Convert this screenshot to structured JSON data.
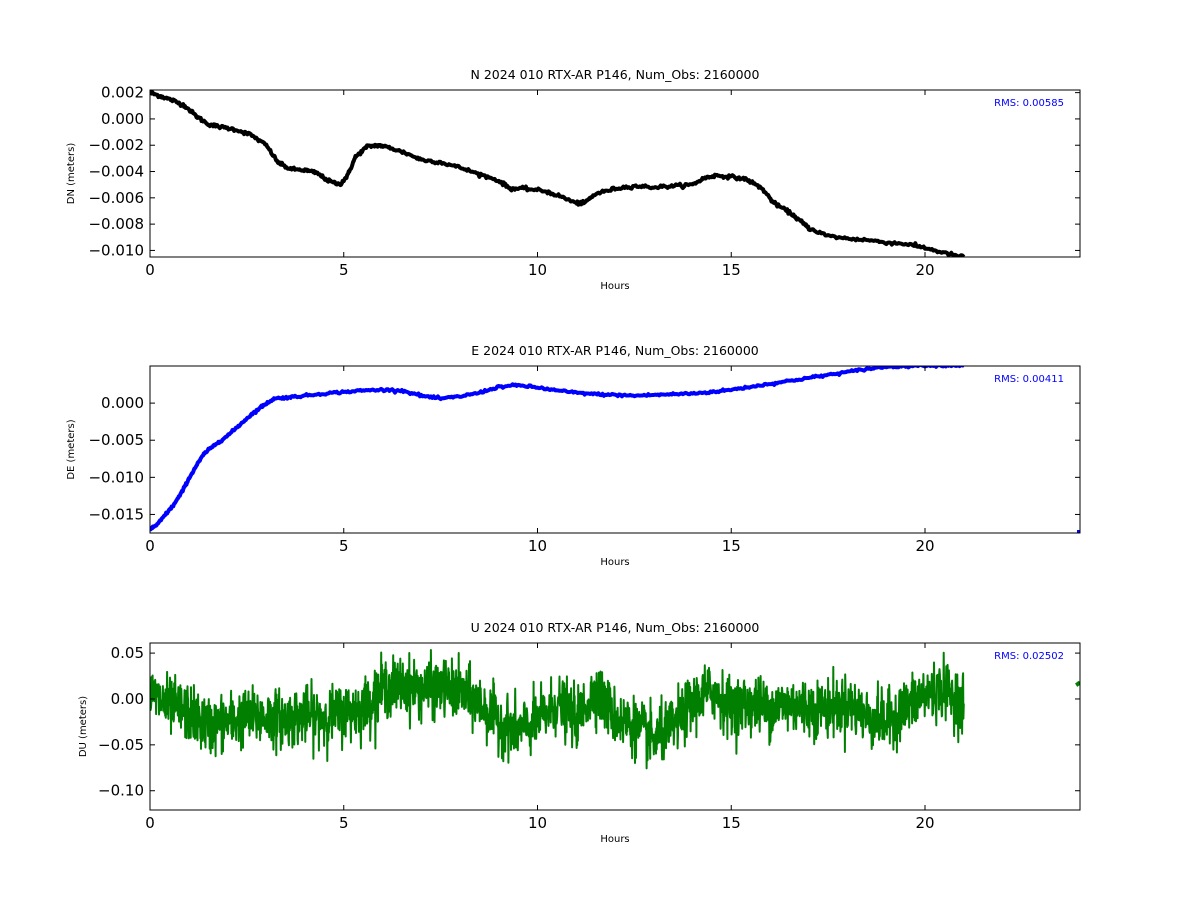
{
  "chart_data": [
    {
      "type": "line",
      "title": "N 2024 010 RTX-AR  P146, Num_Obs: 2160000",
      "xlabel": "Hours",
      "ylabel": "DN (meters)",
      "xlim": [
        0,
        24
      ],
      "ylim": [
        -0.0105,
        0.0022
      ],
      "xticks": [
        0,
        5,
        10,
        15,
        20
      ],
      "xtick_labels": [
        "0",
        "5",
        "10",
        "15",
        "20"
      ],
      "yticks": [
        0.002,
        0.0,
        -0.002,
        -0.004,
        -0.006,
        -0.008,
        -0.01
      ],
      "ytick_labels": [
        "0.002",
        "0.000",
        "−0.002",
        "−0.004",
        "−0.006",
        "−0.008",
        "−0.010"
      ],
      "rms_label": "RMS:  0.00585",
      "rms_color": "#0000ff",
      "grid": false,
      "series": [
        {
          "color": "#000000",
          "noise": 6e-05,
          "x": [
            0,
            0.3,
            0.6,
            0.9,
            1.2,
            1.5,
            1.8,
            2.2,
            2.6,
            3.0,
            3.3,
            3.6,
            4.0,
            4.3,
            4.6,
            4.9,
            5.1,
            5.3,
            5.6,
            5.9,
            6.2,
            6.6,
            7.0,
            7.5,
            8.0,
            8.5,
            9.0,
            9.3,
            9.7,
            10.2,
            10.6,
            11.0,
            11.2,
            11.5,
            12.0,
            12.5,
            13.0,
            13.5,
            14.0,
            14.3,
            14.6,
            15.0,
            15.4,
            15.8,
            16.1,
            16.5,
            16.8,
            17.0,
            17.5,
            18.0,
            18.5,
            19.0,
            19.5,
            20.0,
            20.5,
            21.0
          ],
          "y": [
            0.002,
            0.0017,
            0.0014,
            0.001,
            0.0002,
            -0.0004,
            -0.0006,
            -0.0008,
            -0.0012,
            -0.002,
            -0.0033,
            -0.0038,
            -0.0039,
            -0.0041,
            -0.0047,
            -0.005,
            -0.0043,
            -0.0029,
            -0.0021,
            -0.002,
            -0.0022,
            -0.0026,
            -0.0031,
            -0.0033,
            -0.0037,
            -0.0042,
            -0.0047,
            -0.0053,
            -0.0053,
            -0.0055,
            -0.0059,
            -0.0064,
            -0.0064,
            -0.0057,
            -0.0053,
            -0.0051,
            -0.0052,
            -0.0051,
            -0.005,
            -0.0045,
            -0.0043,
            -0.0044,
            -0.0046,
            -0.0053,
            -0.0064,
            -0.0071,
            -0.0078,
            -0.0083,
            -0.0089,
            -0.0091,
            -0.0092,
            -0.0094,
            -0.0095,
            -0.0098,
            -0.0102,
            -0.0105
          ]
        }
      ]
    },
    {
      "type": "line",
      "title": "E 2024 010 RTX-AR  P146, Num_Obs: 2160000",
      "xlabel": "Hours",
      "ylabel": "DE (meters)",
      "xlim": [
        0,
        24
      ],
      "ylim": [
        -0.0175,
        0.005
      ],
      "xticks": [
        0,
        5,
        10,
        15,
        20
      ],
      "xtick_labels": [
        "0",
        "5",
        "10",
        "15",
        "20"
      ],
      "yticks": [
        0.0,
        -0.005,
        -0.01,
        -0.015
      ],
      "ytick_labels": [
        "0.000",
        "−0.005",
        "−0.010",
        "−0.015"
      ],
      "rms_label": "RMS:  0.00411",
      "rms_color": "#0000ff",
      "grid": false,
      "series": [
        {
          "color": "#0000ff",
          "noise": 8e-05,
          "x": [
            0,
            0.2,
            0.4,
            0.6,
            0.8,
            1.0,
            1.2,
            1.4,
            1.7,
            2.0,
            2.3,
            2.6,
            2.9,
            3.2,
            3.6,
            4.0,
            4.5,
            5.0,
            5.5,
            6.0,
            6.5,
            7.0,
            7.5,
            8.0,
            8.5,
            9.0,
            9.5,
            10.0,
            10.5,
            11.0,
            11.5,
            12.0,
            12.5,
            13.0,
            13.5,
            14.0,
            14.5,
            15.0,
            15.5,
            16.0,
            16.5,
            17.0,
            17.5,
            18.0,
            18.5,
            19.0,
            19.5,
            20.0,
            20.5,
            21.0
          ],
          "y": [
            -0.017,
            -0.0163,
            -0.015,
            -0.0138,
            -0.0122,
            -0.0102,
            -0.0084,
            -0.0068,
            -0.0055,
            -0.0044,
            -0.003,
            -0.0016,
            -0.0004,
            0.0006,
            0.0008,
            0.001,
            0.0013,
            0.0015,
            0.0017,
            0.0018,
            0.0017,
            0.001,
            0.0006,
            0.0009,
            0.0014,
            0.0022,
            0.0024,
            0.0021,
            0.0017,
            0.0014,
            0.0012,
            0.0011,
            0.001,
            0.0011,
            0.0012,
            0.0013,
            0.0015,
            0.0018,
            0.0022,
            0.0026,
            0.003,
            0.0034,
            0.0038,
            0.0042,
            0.0046,
            0.0049,
            0.005,
            0.0051,
            0.0051,
            0.0051
          ]
        },
        {
          "color": "#0000ff",
          "noise": 0,
          "x": [
            24.0
          ],
          "y": [
            -0.0175
          ]
        }
      ]
    },
    {
      "type": "line",
      "title": "U 2024 010 RTX-AR  P146, Num_Obs: 2160000",
      "xlabel": "Hours",
      "ylabel": "DU (meters)",
      "xlim": [
        0,
        24
      ],
      "ylim": [
        -0.121,
        0.061
      ],
      "xticks": [
        0,
        5,
        10,
        15,
        20
      ],
      "xtick_labels": [
        "0",
        "5",
        "10",
        "15",
        "20"
      ],
      "yticks": [
        0.05,
        0.0,
        -0.05,
        -0.1
      ],
      "ytick_labels": [
        "0.05",
        "0.00",
        "−0.05",
        "−0.10"
      ],
      "rms_label": "RMS:  0.02502",
      "rms_color": "#0000ff",
      "grid": false,
      "series": [
        {
          "color": "#007f00",
          "noise": 0.028,
          "x": [
            0,
            0.5,
            1.0,
            1.5,
            2.0,
            2.5,
            3.0,
            3.5,
            4.0,
            4.5,
            5.0,
            5.5,
            6.0,
            6.5,
            7.0,
            7.5,
            8.0,
            8.5,
            9.0,
            9.5,
            10.0,
            10.5,
            11.0,
            11.5,
            12.0,
            12.5,
            13.0,
            13.5,
            14.0,
            14.5,
            15.0,
            15.5,
            16.0,
            16.5,
            17.0,
            17.5,
            18.0,
            18.5,
            19.0,
            19.5,
            20.0,
            20.5,
            21.0
          ],
          "y": [
            0.005,
            -0.008,
            -0.015,
            -0.03,
            -0.025,
            -0.02,
            -0.02,
            -0.022,
            -0.018,
            -0.02,
            -0.015,
            -0.01,
            0.012,
            0.015,
            0.01,
            0.012,
            0.008,
            -0.005,
            -0.025,
            -0.035,
            -0.025,
            -0.005,
            -0.022,
            0.01,
            -0.02,
            -0.03,
            -0.045,
            -0.03,
            -0.005,
            0.01,
            -0.01,
            -0.005,
            -0.01,
            -0.005,
            -0.01,
            -0.01,
            -0.005,
            -0.02,
            -0.025,
            -0.01,
            0.005,
            0.01,
            -0.005
          ]
        },
        {
          "color": "#007f00",
          "noise": 0,
          "x": [
            23.9,
            24.0
          ],
          "y": [
            0.015,
            0.018
          ]
        }
      ]
    }
  ]
}
